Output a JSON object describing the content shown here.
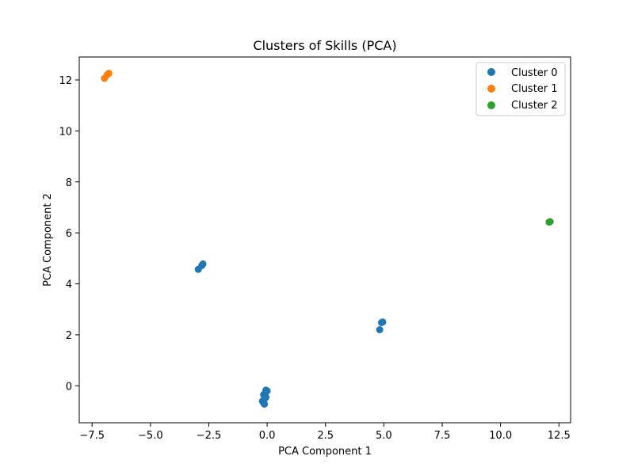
{
  "chart_data": {
    "type": "scatter",
    "title": "Clusters of Skills (PCA)",
    "xlabel": "PCA Component 1",
    "ylabel": "PCA Component 2",
    "xlim": [
      -8.05,
      13.0
    ],
    "ylim": [
      -1.45,
      12.9
    ],
    "xticks": [
      -7.5,
      -5.0,
      -2.5,
      0.0,
      2.5,
      5.0,
      7.5,
      10.0,
      12.5
    ],
    "xtick_labels": [
      "−7.5",
      "−5.0",
      "−2.5",
      "0.0",
      "2.5",
      "5.0",
      "7.5",
      "10.0",
      "12.5"
    ],
    "yticks": [
      0,
      2,
      4,
      6,
      8,
      10,
      12
    ],
    "ytick_labels": [
      "0",
      "2",
      "4",
      "6",
      "8",
      "10",
      "12"
    ],
    "grid": false,
    "legend_position": "top-right",
    "series": [
      {
        "name": "Cluster 0",
        "color": "#1f77b4",
        "points": [
          [
            -2.95,
            4.57
          ],
          [
            -2.8,
            4.72
          ],
          [
            -2.75,
            4.78
          ],
          [
            -0.05,
            -0.17
          ],
          [
            0.0,
            -0.2
          ],
          [
            -0.1,
            -0.3
          ],
          [
            -0.15,
            -0.35
          ],
          [
            -0.05,
            -0.45
          ],
          [
            -0.1,
            -0.5
          ],
          [
            -0.2,
            -0.6
          ],
          [
            -0.15,
            -0.68
          ],
          [
            -0.12,
            -0.72
          ],
          [
            4.82,
            2.2
          ],
          [
            4.9,
            2.48
          ],
          [
            4.95,
            2.5
          ]
        ]
      },
      {
        "name": "Cluster 1",
        "color": "#ff7f0e",
        "points": [
          [
            -6.97,
            12.06
          ],
          [
            -6.85,
            12.2
          ],
          [
            -6.78,
            12.26
          ]
        ]
      },
      {
        "name": "Cluster 2",
        "color": "#2ca02c",
        "points": [
          [
            12.08,
            6.42
          ],
          [
            12.12,
            6.44
          ]
        ]
      }
    ]
  }
}
